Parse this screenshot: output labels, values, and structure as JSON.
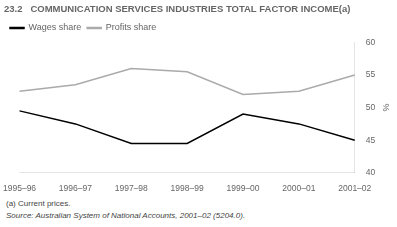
{
  "chart_data": {
    "type": "line",
    "title": "23.2   COMMUNICATION SERVICES INDUSTRIES TOTAL FACTOR INCOME(a)",
    "categories": [
      "1995–96",
      "1996–97",
      "1997–98",
      "1998–99",
      "1999–00",
      "2000–01",
      "2001–02"
    ],
    "series": [
      {
        "name": "Wages share",
        "color": "#000000",
        "values": [
          49.5,
          47.5,
          44.5,
          44.5,
          49.0,
          47.5,
          45.0
        ]
      },
      {
        "name": "Profits share",
        "color": "#aaaaaa",
        "values": [
          52.5,
          53.5,
          56.0,
          55.5,
          52.0,
          52.5,
          55.0
        ]
      }
    ],
    "ylabel": "%",
    "ylim": [
      40,
      60
    ],
    "yticks": [
      40,
      45,
      50,
      55,
      60
    ],
    "grid": false,
    "legend": "upper left",
    "annotations": [
      "(a) Current prices.",
      "Source: Australian System of National Accounts, 2001–02 (5204.0)."
    ]
  }
}
